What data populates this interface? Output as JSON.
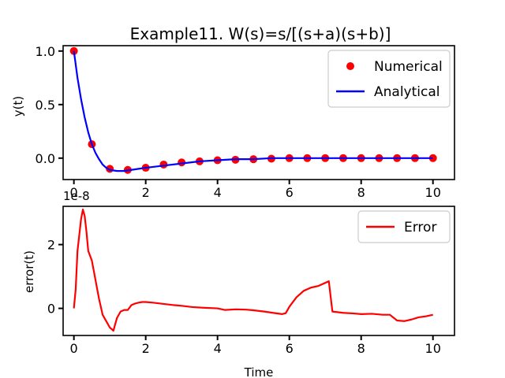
{
  "chart_data": [
    {
      "type": "line",
      "title": "Example11. W(s)=s/[(s+a)(s+b)]",
      "xlabel": "",
      "ylabel": "y(t)",
      "xlim": [
        -0.3,
        10.6
      ],
      "ylim": [
        -0.2,
        1.05
      ],
      "xticks": [
        0,
        2,
        4,
        6,
        8,
        10
      ],
      "xtick_labels": [
        "0",
        "2",
        "4",
        "6",
        "8",
        "10"
      ],
      "yticks": [
        0.0,
        0.5,
        1.0
      ],
      "ytick_labels": [
        "0.0",
        "0.5",
        "1.0"
      ],
      "legend": {
        "position": "top-right",
        "entries": [
          "Numerical",
          "Analytical"
        ]
      },
      "grid": false,
      "series": [
        {
          "name": "Numerical",
          "style": "scatter",
          "color": "#ff0000",
          "x": [
            0.0,
            0.5,
            1.0,
            1.5,
            2.0,
            2.5,
            3.0,
            3.5,
            4.0,
            4.5,
            5.0,
            5.5,
            6.0,
            6.5,
            7.0,
            7.5,
            8.0,
            8.5,
            9.0,
            9.5,
            10.0
          ],
          "y": [
            1.0,
            0.13,
            -0.1,
            -0.11,
            -0.09,
            -0.06,
            -0.04,
            -0.03,
            -0.02,
            -0.015,
            -0.01,
            -0.005,
            0.0,
            0.0,
            0.0,
            0.0,
            0.0,
            0.0,
            0.0,
            0.0,
            0.0
          ]
        },
        {
          "name": "Analytical",
          "style": "line",
          "color": "#0000ff",
          "x": [
            0.0,
            0.1,
            0.2,
            0.3,
            0.4,
            0.5,
            0.6,
            0.7,
            0.8,
            0.9,
            1.0,
            1.2,
            1.4,
            1.6,
            1.8,
            2.0,
            2.5,
            3.0,
            3.5,
            4.0,
            4.5,
            5.0,
            5.5,
            6.0,
            6.5,
            7.0,
            7.5,
            8.0,
            8.5,
            9.0,
            9.5,
            10.0
          ],
          "y": [
            1.0,
            0.75,
            0.55,
            0.38,
            0.24,
            0.13,
            0.05,
            -0.01,
            -0.06,
            -0.09,
            -0.11,
            -0.12,
            -0.12,
            -0.11,
            -0.1,
            -0.09,
            -0.07,
            -0.05,
            -0.03,
            -0.02,
            -0.01,
            -0.01,
            0.0,
            0.0,
            0.0,
            0.0,
            0.0,
            0.0,
            0.0,
            0.0,
            0.0,
            0.0
          ]
        }
      ]
    },
    {
      "type": "line",
      "title": "",
      "xlabel": "Time",
      "ylabel": "error(t)",
      "offset_text": "1e-8",
      "xlim": [
        -0.3,
        10.6
      ],
      "ylim": [
        -0.85,
        3.2
      ],
      "xticks": [
        0,
        2,
        4,
        6,
        8,
        10
      ],
      "xtick_labels": [
        "0",
        "2",
        "4",
        "6",
        "8",
        "10"
      ],
      "yticks": [
        0,
        2
      ],
      "ytick_labels": [
        "0",
        "2"
      ],
      "legend": {
        "position": "top-right",
        "entries": [
          "Error"
        ]
      },
      "grid": false,
      "series": [
        {
          "name": "Error",
          "style": "line",
          "color": "#ff0000",
          "x": [
            0.0,
            0.05,
            0.1,
            0.15,
            0.2,
            0.25,
            0.3,
            0.35,
            0.4,
            0.5,
            0.6,
            0.7,
            0.8,
            0.9,
            1.0,
            1.1,
            1.2,
            1.3,
            1.4,
            1.5,
            1.6,
            1.7,
            1.8,
            1.9,
            2.0,
            2.2,
            2.5,
            2.8,
            3.0,
            3.3,
            3.6,
            4.0,
            4.2,
            4.5,
            4.8,
            5.0,
            5.3,
            5.6,
            5.8,
            5.9,
            6.0,
            6.2,
            6.4,
            6.6,
            6.8,
            7.0,
            7.1,
            7.2,
            7.5,
            7.8,
            8.0,
            8.3,
            8.6,
            8.8,
            9.0,
            9.2,
            9.4,
            9.6,
            9.8,
            10.0
          ],
          "y": [
            0.0,
            0.6,
            1.8,
            2.3,
            2.8,
            3.1,
            2.9,
            2.4,
            1.8,
            1.5,
            0.9,
            0.3,
            -0.2,
            -0.4,
            -0.6,
            -0.7,
            -0.3,
            -0.1,
            -0.05,
            -0.05,
            0.1,
            0.15,
            0.18,
            0.2,
            0.2,
            0.18,
            0.14,
            0.1,
            0.08,
            0.04,
            0.02,
            0.0,
            -0.05,
            -0.03,
            -0.04,
            -0.06,
            -0.1,
            -0.15,
            -0.18,
            -0.15,
            0.05,
            0.35,
            0.55,
            0.65,
            0.7,
            0.8,
            0.85,
            -0.1,
            -0.14,
            -0.16,
            -0.18,
            -0.17,
            -0.2,
            -0.2,
            -0.38,
            -0.4,
            -0.35,
            -0.28,
            -0.25,
            -0.2
          ]
        }
      ]
    }
  ]
}
